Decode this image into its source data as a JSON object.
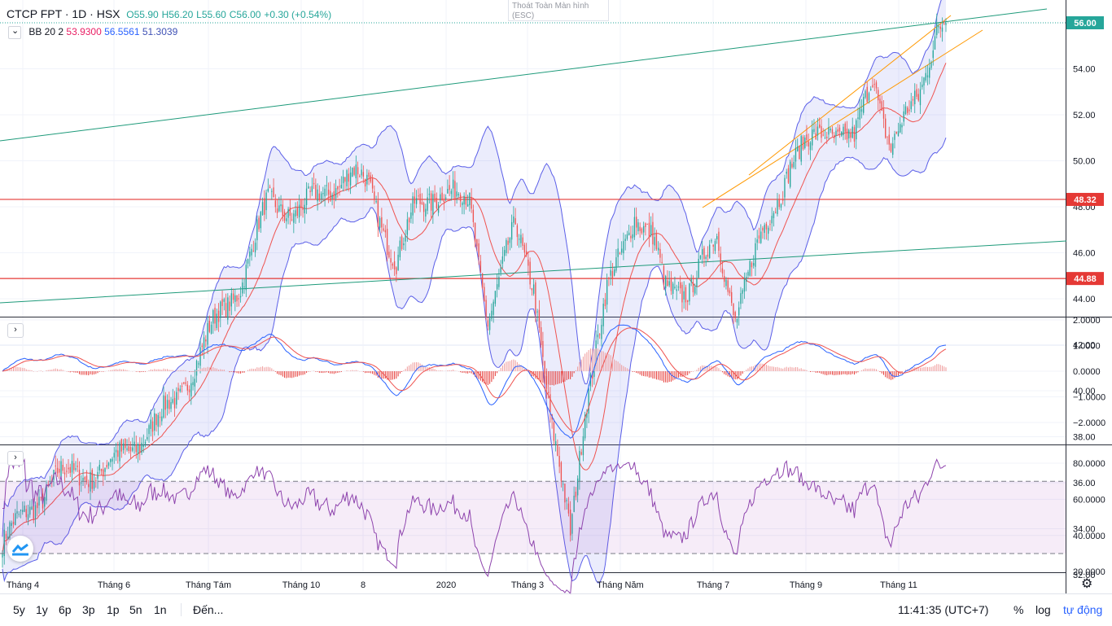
{
  "header": {
    "symbol": "CTCP FPT · 1D · HSX",
    "open": "O55.90",
    "high": "H56.20",
    "low": "L55.60",
    "close": "C56.00",
    "change": "+0.30 (+0.54%)"
  },
  "bb_legend": {
    "label": "BB 20 2",
    "basis": "53.9300",
    "upper": "56.5561",
    "lower": "51.3039"
  },
  "exit_fullscreen": {
    "line1": "Thoát Toàn Màn hình",
    "line2": "(ESC)"
  },
  "toggles": {
    "a": "›",
    "b": "›"
  },
  "price_axis": {
    "ticks": [
      "54.00",
      "52.00",
      "50.00",
      "48.00",
      "46.00",
      "44.00",
      "42.00",
      "40.00",
      "38.00",
      "36.00",
      "34.00",
      "32.00"
    ],
    "last_price_label": "56.00",
    "level1_label": "48.32",
    "level2_label": "44.88"
  },
  "macd_axis": {
    "ticks": [
      "2.0000",
      "1.0000",
      "0.0000",
      "−1.0000",
      "−2.0000"
    ]
  },
  "rsi_axis": {
    "ticks": [
      "80.0000",
      "60.0000",
      "40.0000",
      "20.0000"
    ]
  },
  "time_axis": {
    "labels": [
      "Tháng 4",
      "Tháng 6",
      "Tháng Tám",
      "Tháng 10",
      "8",
      "2020",
      "Tháng 3",
      "Tháng Năm",
      "Tháng 7",
      "Tháng 9",
      "Tháng 11"
    ]
  },
  "bottom": {
    "ranges": [
      "5y",
      "1y",
      "6p",
      "3p",
      "1p",
      "5n",
      "1n"
    ],
    "goto": "Đến...",
    "clock": "11:41:35 (UTC+7)",
    "pct": "%",
    "log": "log",
    "auto": "tự động"
  },
  "colors": {
    "up": "#26a69a",
    "down": "#ef5350",
    "bb": "#5b5fe8",
    "basis": "#ef5350",
    "rsi": "#9c27b0",
    "level": "#e53935",
    "trend": "#1e9a7a",
    "channel": "#ff9800"
  },
  "chart_data": {
    "type": "candlestick",
    "title": "CTCP FPT · 1D · HSX",
    "price_range": [
      31,
      57
    ],
    "months": [
      "Tháng 4",
      "Tháng 6",
      "Tháng Tám",
      "Tháng 10",
      "8",
      "2020",
      "Tháng 3",
      "Tháng Năm",
      "Tháng 7",
      "Tháng 9",
      "Tháng 11"
    ],
    "close_keypoints": [
      [
        0,
        33.4
      ],
      [
        12,
        34.6
      ],
      [
        30,
        36.3
      ],
      [
        55,
        36.5
      ],
      [
        75,
        37.9
      ],
      [
        95,
        39.6
      ],
      [
        115,
        42.8
      ],
      [
        130,
        44.7
      ],
      [
        145,
        48.2
      ],
      [
        160,
        47.8
      ],
      [
        175,
        48.5
      ],
      [
        190,
        49.6
      ],
      [
        200,
        48.8
      ],
      [
        215,
        45.6
      ],
      [
        225,
        47.9
      ],
      [
        240,
        48.8
      ],
      [
        255,
        48.1
      ],
      [
        265,
        43.2
      ],
      [
        280,
        47.1
      ],
      [
        290,
        44.7
      ],
      [
        300,
        38.2
      ],
      [
        310,
        33.8
      ],
      [
        318,
        39.4
      ],
      [
        330,
        44.2
      ],
      [
        345,
        47.8
      ],
      [
        355,
        46.5
      ],
      [
        362,
        44.4
      ],
      [
        375,
        44.5
      ],
      [
        390,
        46.6
      ],
      [
        400,
        43.3
      ],
      [
        415,
        46.8
      ],
      [
        430,
        49.9
      ],
      [
        450,
        51.5
      ],
      [
        465,
        50.8
      ],
      [
        475,
        53.8
      ],
      [
        485,
        50.6
      ],
      [
        500,
        52.8
      ],
      [
        510,
        55.9
      ],
      [
        515,
        56.0
      ]
    ],
    "last": {
      "open": 55.9,
      "high": 56.2,
      "low": 55.6,
      "close": 56.0
    },
    "levels": [
      48.32,
      44.88
    ],
    "bollinger": {
      "period": 20,
      "mult": 2,
      "basis": 53.93,
      "upper": 56.5561,
      "lower": 51.3039
    },
    "macd_range": [
      -2.5,
      2.0
    ],
    "rsi_range": [
      20,
      90
    ],
    "rsi_bands": [
      30,
      70
    ]
  }
}
